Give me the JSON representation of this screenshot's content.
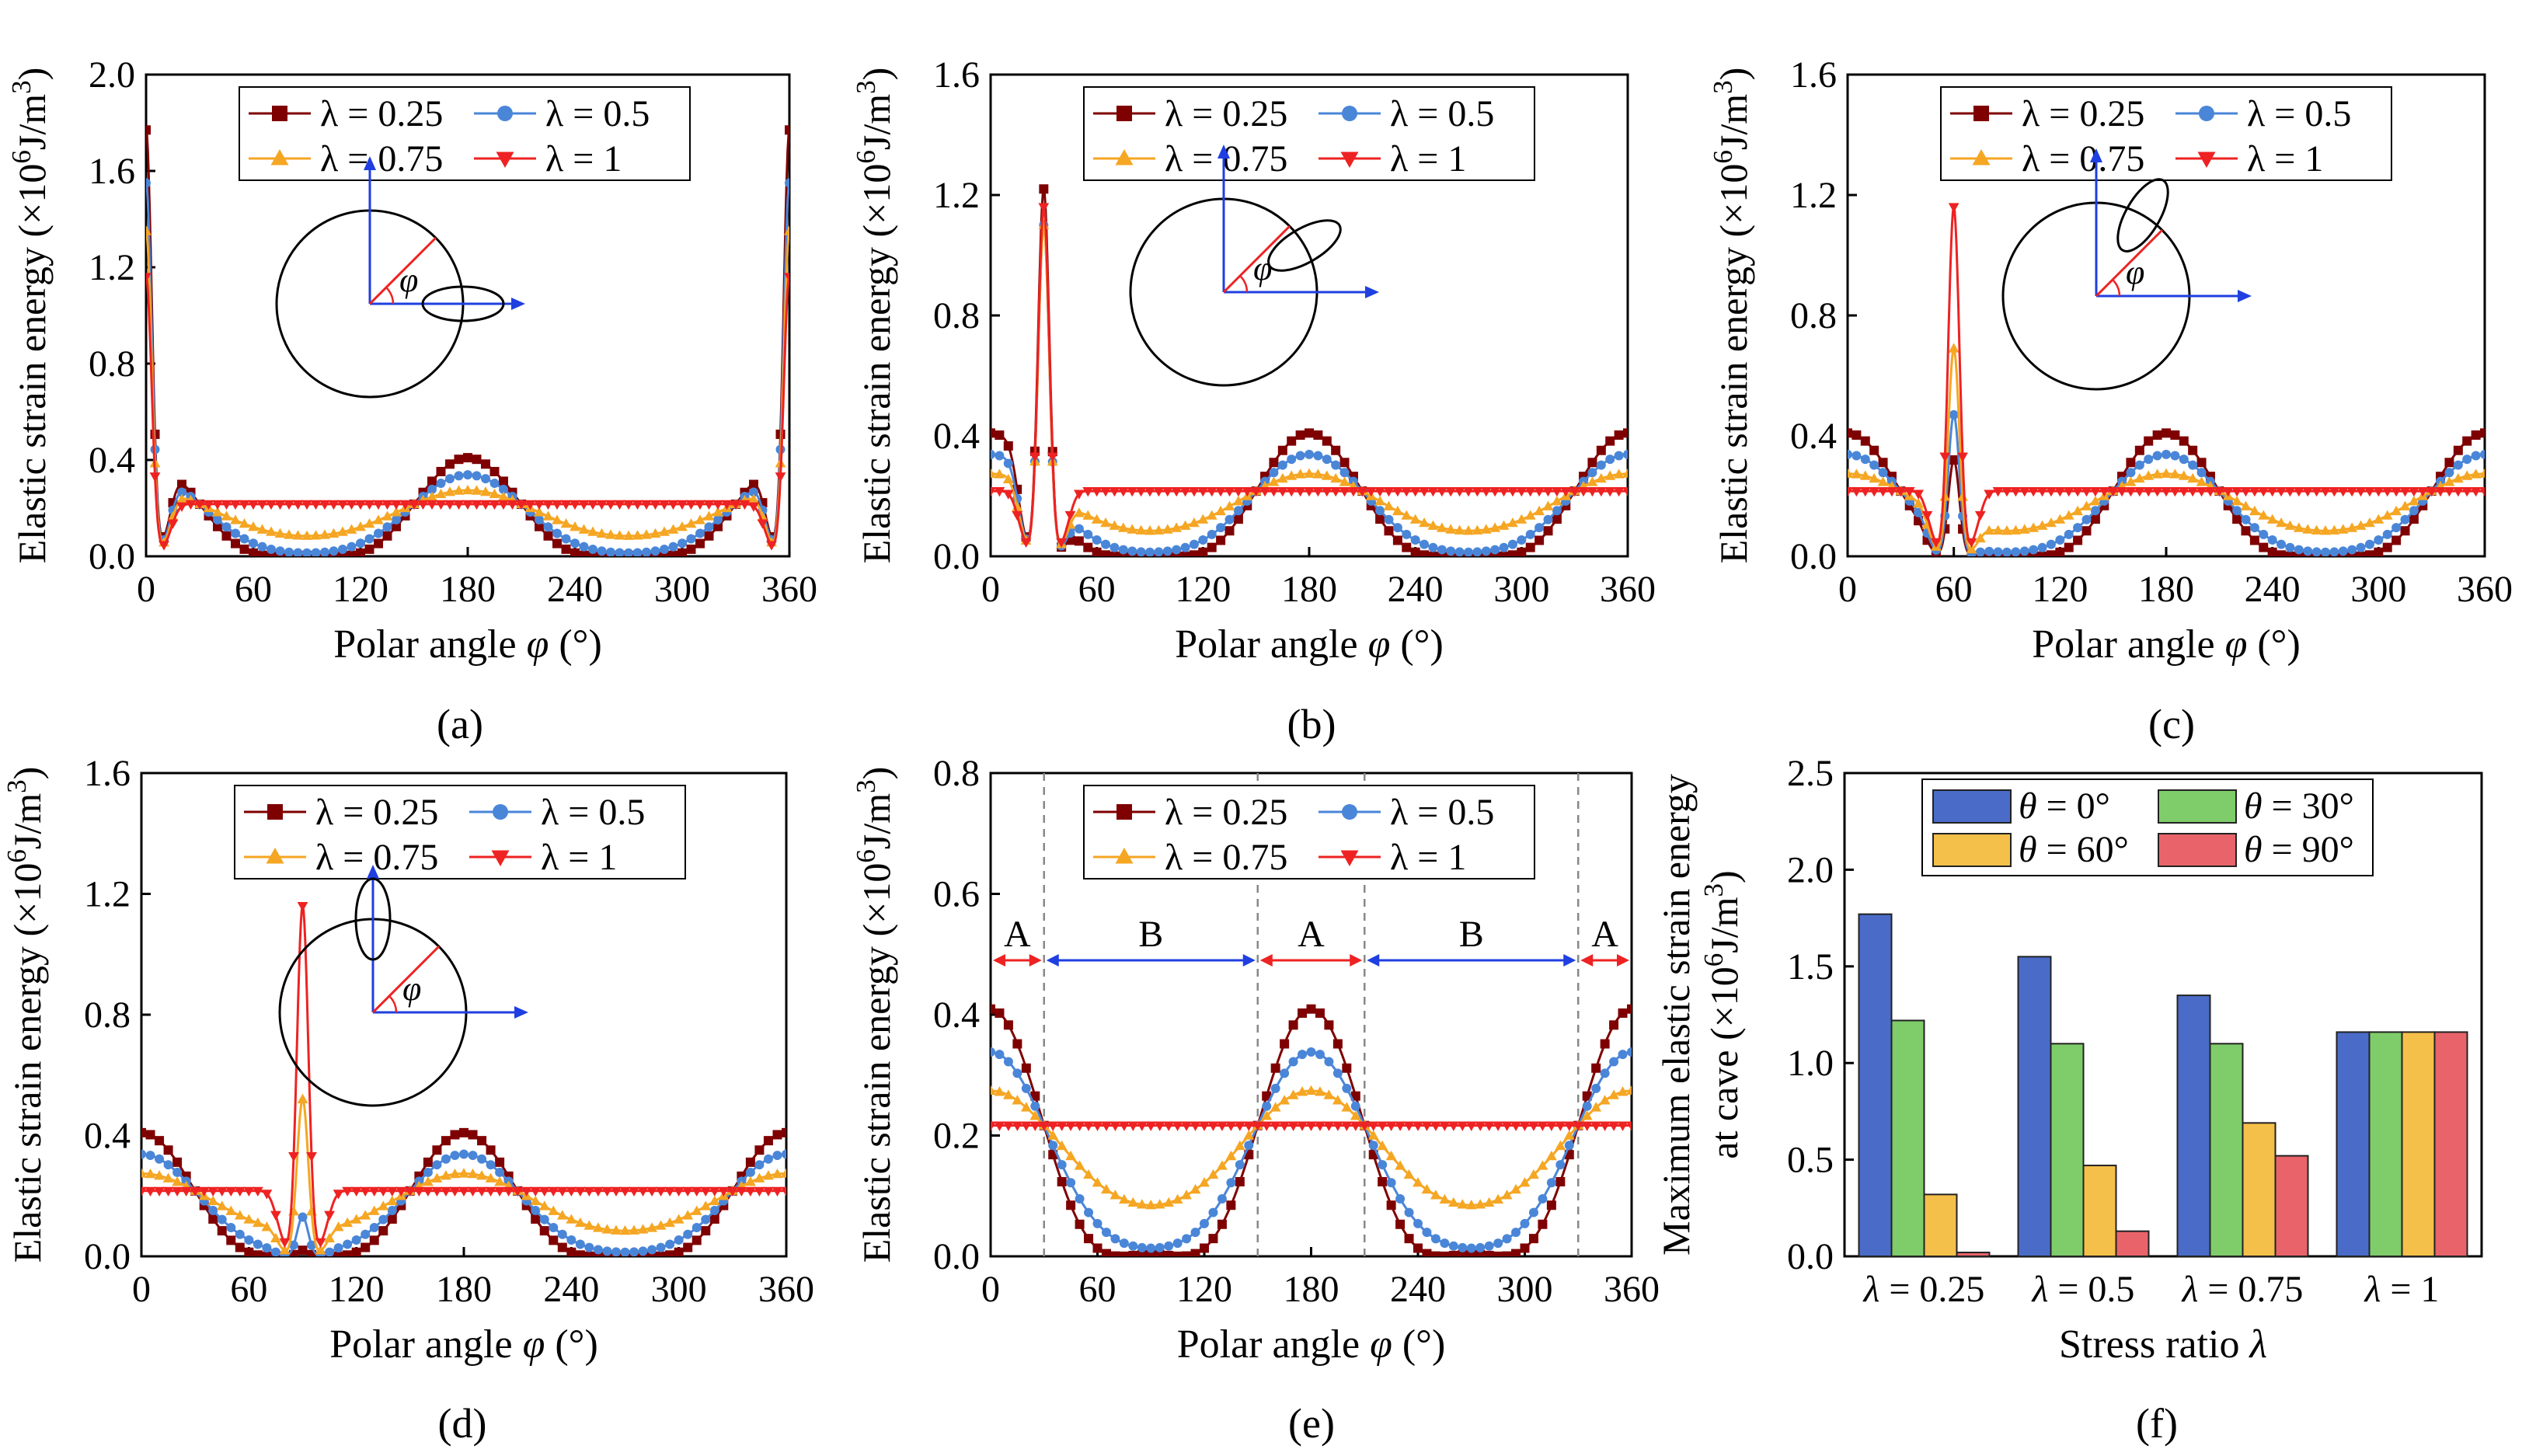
{
  "chart_data": [
    {
      "panel": "(a)",
      "type": "line",
      "xlabel_prefix": "Polar angle ",
      "xlabel_symbol": "φ",
      "xlabel_suffix": " (°)",
      "ylabel_text": "Elastic strain energy (×10",
      "ylabel_exp": "6",
      "ylabel_unit": "J/m",
      "ylabel_unit_exp": "3",
      "ylabel_close": ")",
      "xlim": [
        0,
        360
      ],
      "ylim": [
        0,
        2.0
      ],
      "xticks": [
        "0",
        "60",
        "120",
        "180",
        "240",
        "300",
        "360"
      ],
      "yticks": [
        "0.0",
        "0.4",
        "0.8",
        "1.2",
        "1.6",
        "2.0"
      ],
      "cave_angle_deg": 0,
      "inset_phi": "φ",
      "peak_values": {
        "λ = 0.25": 1.77,
        "λ = 0.5": 1.55,
        "λ = 0.75": 1.35,
        "λ = 1": 1.16
      },
      "series": [
        {
          "name": "λ = 0.25",
          "lambda": 0.25,
          "color": "#7f0000",
          "marker": "square"
        },
        {
          "name": "λ = 0.5",
          "lambda": 0.5,
          "color": "#4a86d8",
          "marker": "circle"
        },
        {
          "name": "λ = 0.75",
          "lambda": 0.75,
          "color": "#f5a623",
          "marker": "triangle-up"
        },
        {
          "name": "λ = 1",
          "lambda": 1,
          "color": "#ee2222",
          "marker": "triangle-down"
        }
      ]
    },
    {
      "panel": "(b)",
      "type": "line",
      "xlabel_prefix": "Polar angle ",
      "xlabel_symbol": "φ",
      "xlabel_suffix": " (°)",
      "ylabel_text": "Elastic strain energy (×10",
      "ylabel_exp": "6",
      "ylabel_unit": "J/m",
      "ylabel_unit_exp": "3",
      "ylabel_close": ")",
      "xlim": [
        0,
        360
      ],
      "ylim": [
        0,
        1.6
      ],
      "xticks": [
        "0",
        "60",
        "120",
        "180",
        "240",
        "300",
        "360"
      ],
      "yticks": [
        "0.0",
        "0.4",
        "0.8",
        "1.2",
        "1.6"
      ],
      "cave_angle_deg": 30,
      "inset_phi": "φ",
      "peak_values": {
        "λ = 0.25": 1.22,
        "λ = 0.5": 1.1,
        "λ = 0.75": 1.1,
        "λ = 1": 1.16
      },
      "series": [
        {
          "name": "λ = 0.25",
          "lambda": 0.25,
          "color": "#7f0000",
          "marker": "square"
        },
        {
          "name": "λ = 0.5",
          "lambda": 0.5,
          "color": "#4a86d8",
          "marker": "circle"
        },
        {
          "name": "λ = 0.75",
          "lambda": 0.75,
          "color": "#f5a623",
          "marker": "triangle-up"
        },
        {
          "name": "λ = 1",
          "lambda": 1,
          "color": "#ee2222",
          "marker": "triangle-down"
        }
      ]
    },
    {
      "panel": "(c)",
      "type": "line",
      "xlabel_prefix": "Polar angle ",
      "xlabel_symbol": "φ",
      "xlabel_suffix": " (°)",
      "ylabel_text": "Elastic strain energy (×10",
      "ylabel_exp": "6",
      "ylabel_unit": "J/m",
      "ylabel_unit_exp": "3",
      "ylabel_close": ")",
      "xlim": [
        0,
        360
      ],
      "ylim": [
        0,
        1.6
      ],
      "xticks": [
        "0",
        "60",
        "120",
        "180",
        "240",
        "300",
        "360"
      ],
      "yticks": [
        "0.0",
        "0.4",
        "0.8",
        "1.2",
        "1.6"
      ],
      "cave_angle_deg": 60,
      "inset_phi": "φ",
      "peak_values": {
        "λ = 0.25": 0.32,
        "λ = 0.5": 0.47,
        "λ = 0.75": 0.69,
        "λ = 1": 1.16
      },
      "series": [
        {
          "name": "λ = 0.25",
          "lambda": 0.25,
          "color": "#7f0000",
          "marker": "square"
        },
        {
          "name": "λ = 0.5",
          "lambda": 0.5,
          "color": "#4a86d8",
          "marker": "circle"
        },
        {
          "name": "λ = 0.75",
          "lambda": 0.75,
          "color": "#f5a623",
          "marker": "triangle-up"
        },
        {
          "name": "λ = 1",
          "lambda": 1,
          "color": "#ee2222",
          "marker": "triangle-down"
        }
      ]
    },
    {
      "panel": "(d)",
      "type": "line",
      "xlabel_prefix": "Polar angle ",
      "xlabel_symbol": "φ",
      "xlabel_suffix": " (°)",
      "ylabel_text": "Elastic strain energy (×10",
      "ylabel_exp": "6",
      "ylabel_unit": "J/m",
      "ylabel_unit_exp": "3",
      "ylabel_close": ")",
      "xlim": [
        0,
        360
      ],
      "ylim": [
        0,
        1.6
      ],
      "xticks": [
        "0",
        "60",
        "120",
        "180",
        "240",
        "300",
        "360"
      ],
      "yticks": [
        "0.0",
        "0.4",
        "0.8",
        "1.2",
        "1.6"
      ],
      "cave_angle_deg": 90,
      "inset_phi": "φ",
      "peak_values": {
        "λ = 0.25": 0.02,
        "λ = 0.5": 0.13,
        "λ = 0.75": 0.52,
        "λ = 1": 1.16
      },
      "series": [
        {
          "name": "λ = 0.25",
          "lambda": 0.25,
          "color": "#7f0000",
          "marker": "square"
        },
        {
          "name": "λ = 0.5",
          "lambda": 0.5,
          "color": "#4a86d8",
          "marker": "circle"
        },
        {
          "name": "λ = 0.75",
          "lambda": 0.75,
          "color": "#f5a623",
          "marker": "triangle-up"
        },
        {
          "name": "λ = 1",
          "lambda": 1,
          "color": "#ee2222",
          "marker": "triangle-down"
        }
      ]
    },
    {
      "panel": "(e)",
      "type": "line",
      "xlabel_prefix": "Polar angle ",
      "xlabel_symbol": "φ",
      "xlabel_suffix": " (°)",
      "ylabel_text": "Elastic strain energy (×10",
      "ylabel_exp": "6",
      "ylabel_unit": "J/m",
      "ylabel_unit_exp": "3",
      "ylabel_close": ")",
      "xlim": [
        0,
        360
      ],
      "ylim": [
        0,
        0.8
      ],
      "xticks": [
        "0",
        "60",
        "120",
        "180",
        "240",
        "300",
        "360"
      ],
      "yticks": [
        "0.0",
        "0.2",
        "0.4",
        "0.6",
        "0.8"
      ],
      "cave_angle_deg": null,
      "zone_boundaries": [
        30,
        150,
        210,
        330
      ],
      "zone_labels": [
        "A",
        "B",
        "A",
        "B",
        "A"
      ],
      "zone_arrow_level": 0.49,
      "series": [
        {
          "name": "λ = 0.25",
          "lambda": 0.25,
          "color": "#7f0000",
          "marker": "square"
        },
        {
          "name": "λ = 0.5",
          "lambda": 0.5,
          "color": "#4a86d8",
          "marker": "circle"
        },
        {
          "name": "λ = 0.75",
          "lambda": 0.75,
          "color": "#f5a623",
          "marker": "triangle-up"
        },
        {
          "name": "λ = 1",
          "lambda": 1,
          "color": "#ee2222",
          "marker": "triangle-down"
        }
      ]
    },
    {
      "panel": "(f)",
      "type": "bar",
      "xlabel_prefix": "Stress ratio ",
      "xlabel_symbol": "λ",
      "ylabel_line1": "Maximum elastic strain energy",
      "ylabel_line2_text": "at cave (×10",
      "ylabel_exp": "6",
      "ylabel_unit": "J/m",
      "ylabel_unit_exp": "3",
      "ylabel_close": ")",
      "ylim": [
        0,
        2.5
      ],
      "yticks": [
        "0.0",
        "0.5",
        "1.0",
        "1.5",
        "2.0",
        "2.5"
      ],
      "categories": [
        "λ = 0.25",
        "λ = 0.5",
        "λ = 0.75",
        "λ = 1"
      ],
      "series": [
        {
          "name": "θ = 0°",
          "color": "#4a6cc8",
          "values": [
            1.77,
            1.55,
            1.35,
            1.16
          ]
        },
        {
          "name": "θ = 30°",
          "color": "#7fcc6a",
          "values": [
            1.22,
            1.1,
            1.1,
            1.16
          ]
        },
        {
          "name": "θ = 60°",
          "color": "#f5c04a",
          "values": [
            0.32,
            0.47,
            0.69,
            1.16
          ]
        },
        {
          "name": "θ = 90°",
          "color": "#e8646a",
          "values": [
            0.02,
            0.13,
            0.52,
            1.16
          ]
        }
      ]
    }
  ]
}
